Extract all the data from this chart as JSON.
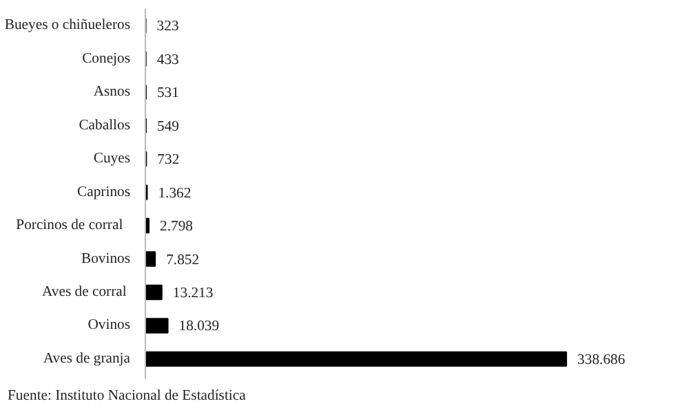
{
  "chart_data": {
    "type": "bar",
    "orientation": "horizontal",
    "categories": [
      "Bueyes o chiñueleros",
      "Conejos",
      "Asnos",
      "Caballos",
      "Cuyes",
      "Caprinos",
      "Porcinos  de  corral",
      "Bovinos",
      "Aves de  corral",
      "Ovinos",
      "Aves de granja"
    ],
    "values": [
      323,
      433,
      531,
      549,
      732,
      1362,
      2798,
      7852,
      13213,
      18039,
      338686
    ],
    "value_labels": [
      "323",
      "433",
      "531",
      "549",
      "732",
      "1.362",
      "2.798",
      "7.852",
      "13.213",
      "18.039",
      "338.686"
    ],
    "color": "#000000",
    "grid": false,
    "annotations": [
      "Fuente: Instituto Nacional de Estadística"
    ]
  }
}
